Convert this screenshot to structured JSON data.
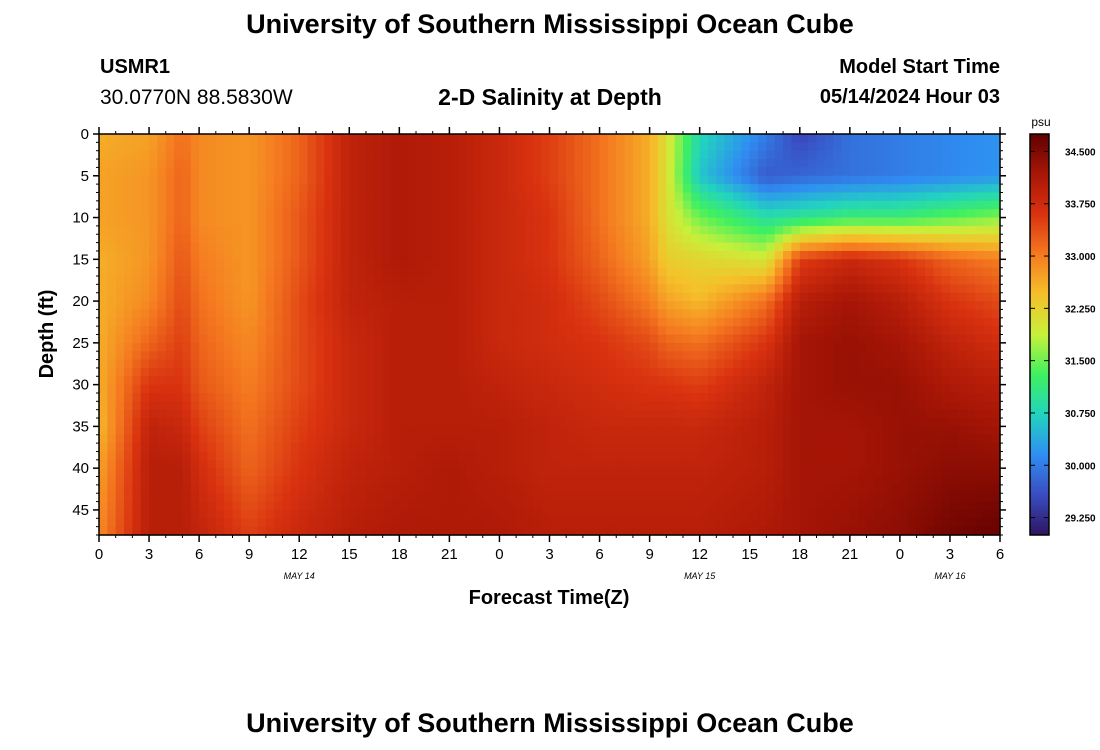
{
  "header": {
    "title": "University of Southern Mississippi Ocean Cube",
    "station": "USMR1",
    "coords": "30.0770N  88.5830W",
    "chart_title": "2-D Salinity at Depth",
    "model_label": "Model Start Time",
    "model_time": "05/14/2024 Hour 03"
  },
  "footer": {
    "title": "University of Southern Mississippi Ocean Cube"
  },
  "chart_data": {
    "type": "heatmap",
    "title": "2-D Salinity at Depth",
    "xlabel": "Forecast Time(Z)",
    "ylabel": "Depth (ft)",
    "x_hours": [
      0,
      6,
      48
    ],
    "xlim_hours": [
      0,
      54
    ],
    "x_tick_labels": [
      "0",
      "3",
      "6",
      "9",
      "12",
      "15",
      "18",
      "21",
      "0",
      "3",
      "6",
      "9",
      "12",
      "15",
      "18",
      "21",
      "0",
      "3",
      "6"
    ],
    "date_labels": [
      {
        "hour": 12,
        "label": "MAY 14"
      },
      {
        "hour": 36,
        "label": "MAY 15"
      },
      {
        "hour": 51,
        "label": "MAY 16"
      }
    ],
    "ylim": [
      0,
      48
    ],
    "y_ticks": [
      0,
      5,
      10,
      15,
      20,
      25,
      30,
      35,
      40,
      45
    ],
    "colorbar": {
      "unit": "psu",
      "min": 29.0,
      "max": 34.75,
      "ticks": [
        "34.500",
        "33.750",
        "33.000",
        "32.250",
        "31.500",
        "30.750",
        "30.000",
        "29.250"
      ],
      "tick_values": [
        34.5,
        33.75,
        33.0,
        32.25,
        31.5,
        30.75,
        30.0,
        29.25
      ],
      "colors": [
        "#2d1560",
        "#3a4cc0",
        "#2f8ef2",
        "#22d3c0",
        "#3ff060",
        "#c8f03a",
        "#f5c02a",
        "#f57a20",
        "#d93210",
        "#a81606",
        "#600000"
      ]
    },
    "grid_time_hours": [
      0,
      3,
      5,
      6,
      9,
      12,
      15,
      18,
      21,
      24,
      27,
      30,
      33,
      34,
      36,
      40,
      42,
      45,
      48,
      51,
      54
    ],
    "grid_depth_ft": [
      0,
      5,
      10,
      15,
      20,
      25,
      30,
      35,
      40,
      48
    ],
    "salinity_psu": [
      [
        32.6,
        32.7,
        32.7,
        32.6,
        32.6,
        32.6,
        32.6,
        32.5,
        32.7,
        32.9
      ],
      [
        32.7,
        32.8,
        32.8,
        32.8,
        32.9,
        33.2,
        33.6,
        33.9,
        34.0,
        34.0
      ],
      [
        33.1,
        33.2,
        33.2,
        33.3,
        33.4,
        33.5,
        33.6,
        33.8,
        34.0,
        34.0
      ],
      [
        32.9,
        32.9,
        32.9,
        33.0,
        33.1,
        33.2,
        33.3,
        33.5,
        33.7,
        33.9
      ],
      [
        32.8,
        32.8,
        32.8,
        32.8,
        32.8,
        32.9,
        33.0,
        33.1,
        33.2,
        33.5
      ],
      [
        33.2,
        33.2,
        33.3,
        33.3,
        33.4,
        33.4,
        33.4,
        33.5,
        33.6,
        33.8
      ],
      [
        33.9,
        33.9,
        33.9,
        33.9,
        33.9,
        33.8,
        33.8,
        33.8,
        33.9,
        34.0
      ],
      [
        34.1,
        34.1,
        34.1,
        34.1,
        34.0,
        34.0,
        34.0,
        34.0,
        34.0,
        34.1
      ],
      [
        34.0,
        34.0,
        34.0,
        34.0,
        34.0,
        34.0,
        34.0,
        34.0,
        34.1,
        34.1
      ],
      [
        33.8,
        33.8,
        33.8,
        33.8,
        33.8,
        33.8,
        33.9,
        34.0,
        34.0,
        34.1
      ],
      [
        33.5,
        33.5,
        33.6,
        33.6,
        33.7,
        33.7,
        33.8,
        33.9,
        33.9,
        34.0
      ],
      [
        33.1,
        33.1,
        33.1,
        33.2,
        33.4,
        33.6,
        33.7,
        33.8,
        33.9,
        34.0
      ],
      [
        32.6,
        32.6,
        32.6,
        32.7,
        33.0,
        33.4,
        33.6,
        33.8,
        33.9,
        34.0
      ],
      [
        32.1,
        32.1,
        32.1,
        32.3,
        32.7,
        33.2,
        33.6,
        33.8,
        33.9,
        34.0
      ],
      [
        30.8,
        30.6,
        31.5,
        32.2,
        32.5,
        33.1,
        33.5,
        33.8,
        33.9,
        34.0
      ],
      [
        30.0,
        29.7,
        30.9,
        32.0,
        33.1,
        33.6,
        33.9,
        34.0,
        34.0,
        34.1
      ],
      [
        29.5,
        29.8,
        31.0,
        33.5,
        34.0,
        34.2,
        34.2,
        34.2,
        34.2,
        34.2
      ],
      [
        29.9,
        29.9,
        31.2,
        33.8,
        34.2,
        34.3,
        34.3,
        34.2,
        34.2,
        34.3
      ],
      [
        30.0,
        30.0,
        31.2,
        33.6,
        34.0,
        34.2,
        34.3,
        34.3,
        34.3,
        34.4
      ],
      [
        30.1,
        30.1,
        31.4,
        33.2,
        33.6,
        33.9,
        34.1,
        34.3,
        34.4,
        34.6
      ],
      [
        30.2,
        30.2,
        31.6,
        33.0,
        33.4,
        33.7,
        34.0,
        34.2,
        34.4,
        34.7
      ]
    ]
  }
}
